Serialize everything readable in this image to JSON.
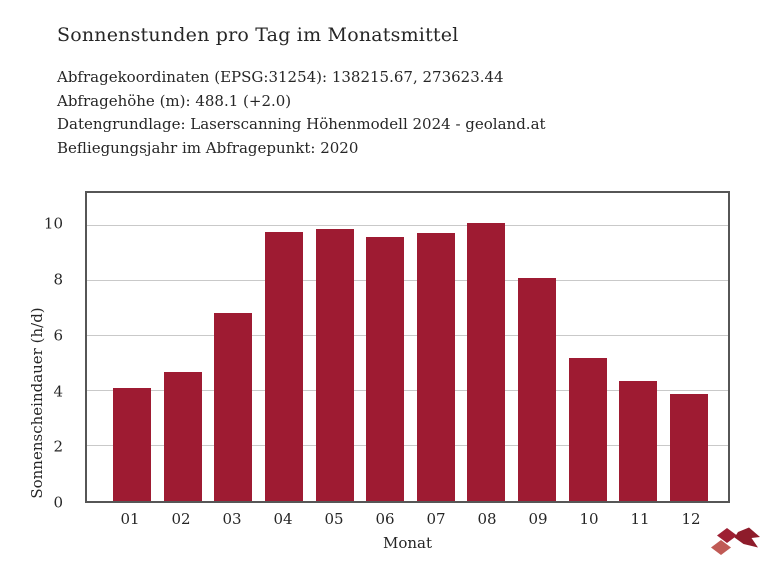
{
  "window": {
    "background": "#ffffff"
  },
  "header": {
    "title": "Sonnenstunden pro Tag im Monatsmittel",
    "meta_lines": [
      "Abfragekoordinaten (EPSG:31254): 138215.67, 273623.44",
      "Abfragehöhe (m): 488.1 (+2.0)",
      "Datengrundlage: Laserscanning Höhenmodell 2024 - geoland.at",
      "Befliegungsjahr im Abfragepunkt: 2020"
    ]
  },
  "chart_data": {
    "type": "bar",
    "title": "Sonnenstunden pro Tag im Monatsmittel",
    "categories": [
      "01",
      "02",
      "03",
      "04",
      "05",
      "06",
      "07",
      "08",
      "09",
      "10",
      "11",
      "12"
    ],
    "values": [
      4.1,
      4.7,
      6.85,
      9.8,
      9.9,
      9.6,
      9.75,
      10.1,
      8.1,
      5.2,
      4.35,
      3.9
    ],
    "xlabel": "Monat",
    "ylabel": "Sonnenscheindauer (h/d)",
    "ylim": [
      0,
      11.2
    ],
    "yticks": [
      0,
      2,
      4,
      6,
      8,
      10
    ],
    "grid": "horizontal",
    "legend": "none",
    "bar_color": "#9e1b32",
    "gridline_color": "#c9c9c9",
    "plot_border_color": "#565656",
    "text_color": "#262626"
  },
  "footer": {
    "logo_icon": "geoland-cube-logo",
    "logo_colors": [
      "#9e2033",
      "#c05a55",
      "#8e1c2b"
    ]
  }
}
